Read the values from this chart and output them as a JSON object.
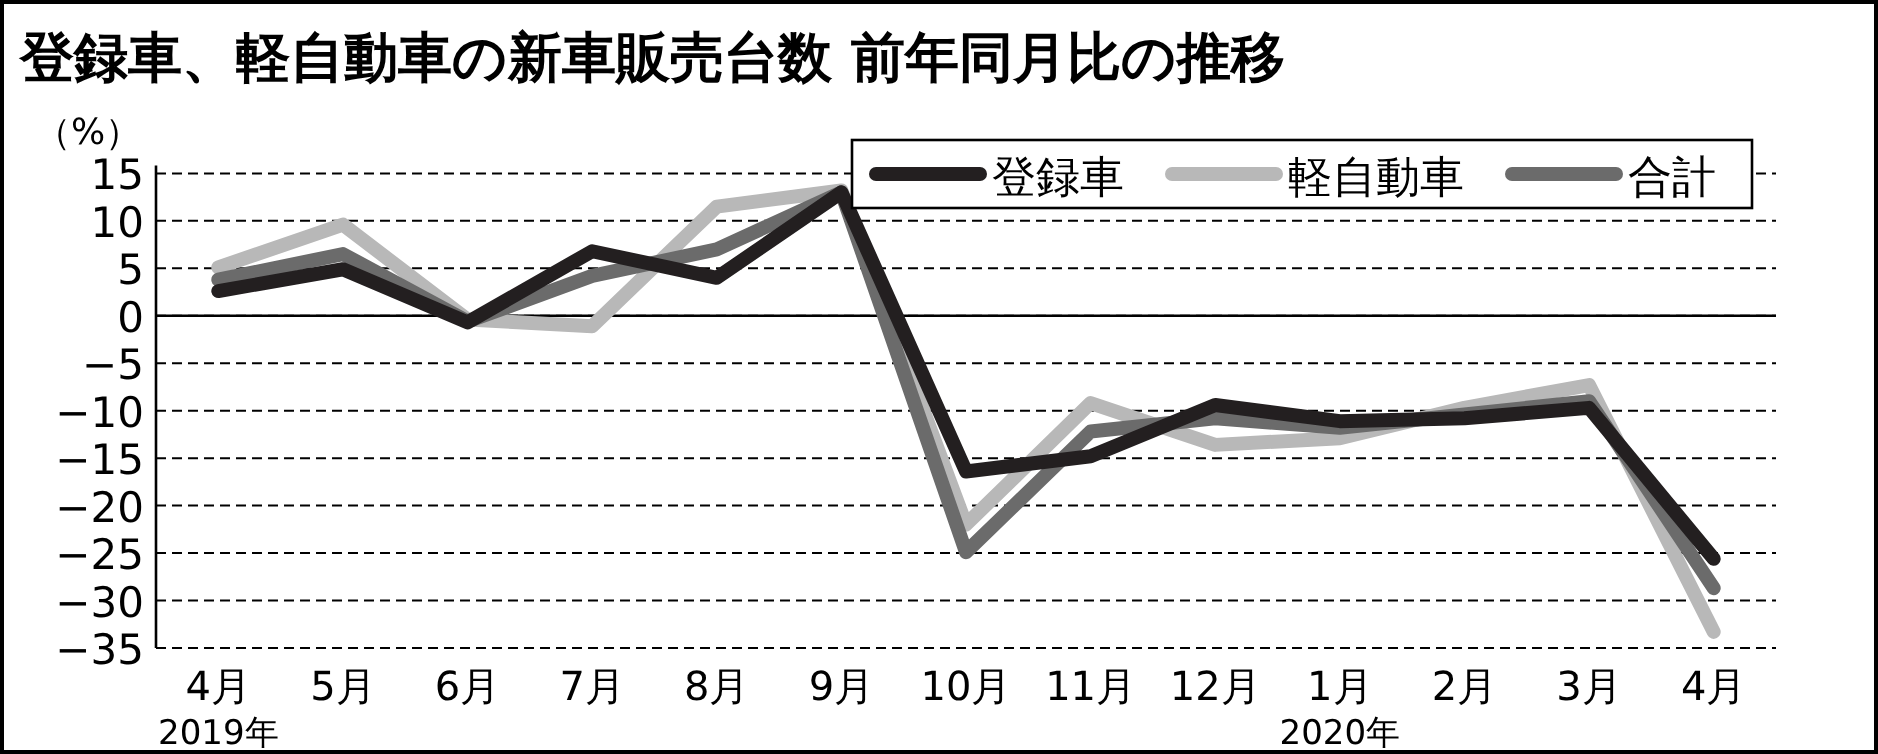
{
  "chart_data": {
    "type": "line",
    "title": "登録車、軽自動車の新車販売台数 前年同月比の推移",
    "ylabel": "（%）",
    "categories": [
      "4月",
      "5月",
      "6月",
      "7月",
      "8月",
      "9月",
      "10月",
      "11月",
      "12月",
      "1月",
      "2月",
      "3月",
      "4月"
    ],
    "series": [
      {
        "name": "登録車",
        "color": "#231f20",
        "values": [
          2.6,
          4.9,
          -0.7,
          6.8,
          4.0,
          13.0,
          -16.4,
          -14.8,
          -9.4,
          -11.1,
          -10.8,
          -9.7,
          -25.6
        ]
      },
      {
        "name": "軽自動車",
        "color": "#b8b8b8",
        "values": [
          5.1,
          9.6,
          -0.4,
          -1.1,
          11.5,
          13.2,
          -22.0,
          -9.2,
          -13.6,
          -12.9,
          -9.7,
          -7.3,
          -33.3
        ]
      },
      {
        "name": "合計",
        "color": "#6b6b6b",
        "values": [
          3.8,
          6.5,
          -0.6,
          4.2,
          7.0,
          13.0,
          -24.9,
          -12.2,
          -10.8,
          -11.8,
          -10.4,
          -9.0,
          -28.7
        ]
      }
    ],
    "ylim": [
      -35,
      15
    ],
    "yticks": [
      15,
      10,
      5,
      0,
      -5,
      -10,
      -15,
      -20,
      -25,
      -30,
      -35
    ],
    "ref_lines": [
      {
        "axis": "y",
        "value": 0,
        "color": "#000000",
        "line_style": "solid"
      }
    ],
    "annotations": [
      "2019年",
      "2020年"
    ],
    "grid": "y",
    "legend": "top right",
    "marker": "none",
    "line_style": "solid"
  }
}
